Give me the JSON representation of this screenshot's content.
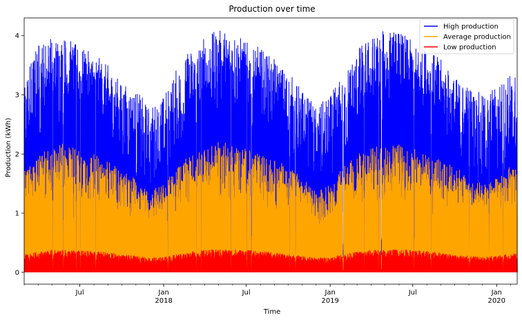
{
  "chart_data": {
    "type": "area",
    "title": "Production over time",
    "xlabel": "Time",
    "ylabel": "Production (kWh)",
    "xlim": [
      "2017-03-01",
      "2020-02-15"
    ],
    "ylim": [
      -0.2,
      4.3
    ],
    "y_ticks": [
      0,
      1,
      2,
      3,
      4
    ],
    "x_ticks": [
      {
        "date": "2017-07-01",
        "label": "Jul",
        "year": ""
      },
      {
        "date": "2018-01-01",
        "label": "Jan",
        "year": "2018"
      },
      {
        "date": "2018-07-01",
        "label": "Jul",
        "year": ""
      },
      {
        "date": "2019-01-01",
        "label": "Jan",
        "year": "2019"
      },
      {
        "date": "2019-07-01",
        "label": "Jul",
        "year": ""
      },
      {
        "date": "2020-01-01",
        "label": "Jan",
        "year": "2020"
      }
    ],
    "grid": false,
    "legend_position": "top-right",
    "series": [
      {
        "name": "High production",
        "color": "#0000ff",
        "x": [
          "2017-03-01",
          "2017-04-01",
          "2017-05-01",
          "2017-06-01",
          "2017-07-01",
          "2017-08-01",
          "2017-09-01",
          "2017-10-01",
          "2017-11-01",
          "2017-12-01",
          "2018-01-01",
          "2018-02-01",
          "2018-03-01",
          "2018-04-01",
          "2018-05-01",
          "2018-06-01",
          "2018-07-01",
          "2018-08-01",
          "2018-09-01",
          "2018-10-01",
          "2018-11-01",
          "2018-12-01",
          "2019-01-01",
          "2019-02-01",
          "2019-03-01",
          "2019-04-01",
          "2019-05-01",
          "2019-06-01",
          "2019-07-01",
          "2019-08-01",
          "2019-09-01",
          "2019-10-01",
          "2019-11-01",
          "2019-12-01",
          "2020-01-01",
          "2020-02-01"
        ],
        "y_low": [
          1.6,
          2.2,
          2.4,
          2.5,
          2.5,
          2.4,
          2.2,
          1.8,
          1.4,
          1.1,
          1.2,
          1.6,
          2.0,
          2.3,
          2.5,
          2.6,
          2.5,
          2.4,
          2.2,
          1.8,
          1.4,
          1.1,
          1.1,
          1.5,
          2.0,
          2.3,
          2.5,
          2.5,
          2.5,
          2.4,
          2.2,
          1.8,
          1.4,
          1.1,
          1.2,
          1.4
        ],
        "y_high": [
          3.3,
          3.9,
          4.0,
          4.0,
          3.8,
          3.7,
          3.5,
          3.2,
          3.1,
          2.8,
          3.0,
          3.5,
          3.8,
          4.0,
          4.1,
          4.1,
          3.9,
          3.8,
          3.6,
          3.4,
          3.1,
          2.8,
          3.0,
          3.4,
          3.8,
          4.0,
          4.1,
          4.1,
          3.9,
          3.8,
          3.6,
          3.3,
          3.2,
          3.0,
          3.2,
          3.4
        ]
      },
      {
        "name": "Average production",
        "color": "#ffa500",
        "x": [
          "2017-03-01",
          "2017-04-01",
          "2017-05-01",
          "2017-06-01",
          "2017-07-01",
          "2017-08-01",
          "2017-09-01",
          "2017-10-01",
          "2017-11-01",
          "2017-12-01",
          "2018-01-01",
          "2018-02-01",
          "2018-03-01",
          "2018-04-01",
          "2018-05-01",
          "2018-06-01",
          "2018-07-01",
          "2018-08-01",
          "2018-09-01",
          "2018-10-01",
          "2018-11-01",
          "2018-12-01",
          "2019-01-01",
          "2019-02-01",
          "2019-03-01",
          "2019-04-01",
          "2019-05-01",
          "2019-06-01",
          "2019-07-01",
          "2019-08-01",
          "2019-09-01",
          "2019-10-01",
          "2019-11-01",
          "2019-12-01",
          "2020-01-01",
          "2020-02-01"
        ],
        "y_high": [
          1.7,
          2.0,
          2.1,
          2.2,
          2.1,
          2.0,
          1.9,
          1.7,
          1.6,
          1.4,
          1.5,
          1.8,
          2.0,
          2.1,
          2.2,
          2.2,
          2.1,
          2.0,
          1.9,
          1.8,
          1.6,
          1.4,
          1.5,
          1.8,
          2.0,
          2.1,
          2.2,
          2.2,
          2.1,
          2.0,
          1.9,
          1.8,
          1.6,
          1.5,
          1.6,
          1.8
        ]
      },
      {
        "name": "Low production",
        "color": "#ff0000",
        "x": [
          "2017-03-01",
          "2017-04-01",
          "2017-05-01",
          "2017-06-01",
          "2017-07-01",
          "2017-08-01",
          "2017-09-01",
          "2017-10-01",
          "2017-11-01",
          "2017-12-01",
          "2018-01-01",
          "2018-02-01",
          "2018-03-01",
          "2018-04-01",
          "2018-05-01",
          "2018-06-01",
          "2018-07-01",
          "2018-08-01",
          "2018-09-01",
          "2018-10-01",
          "2018-11-01",
          "2018-12-01",
          "2019-01-01",
          "2019-02-01",
          "2019-03-01",
          "2019-04-01",
          "2019-05-01",
          "2019-06-01",
          "2019-07-01",
          "2019-08-01",
          "2019-09-01",
          "2019-10-01",
          "2019-11-01",
          "2019-12-01",
          "2020-01-01",
          "2020-02-01"
        ],
        "y_high": [
          0.3,
          0.35,
          0.38,
          0.38,
          0.37,
          0.36,
          0.34,
          0.3,
          0.28,
          0.25,
          0.26,
          0.31,
          0.35,
          0.38,
          0.39,
          0.39,
          0.38,
          0.36,
          0.34,
          0.3,
          0.28,
          0.25,
          0.26,
          0.31,
          0.35,
          0.38,
          0.39,
          0.39,
          0.38,
          0.36,
          0.34,
          0.3,
          0.28,
          0.26,
          0.28,
          0.32
        ]
      }
    ]
  }
}
